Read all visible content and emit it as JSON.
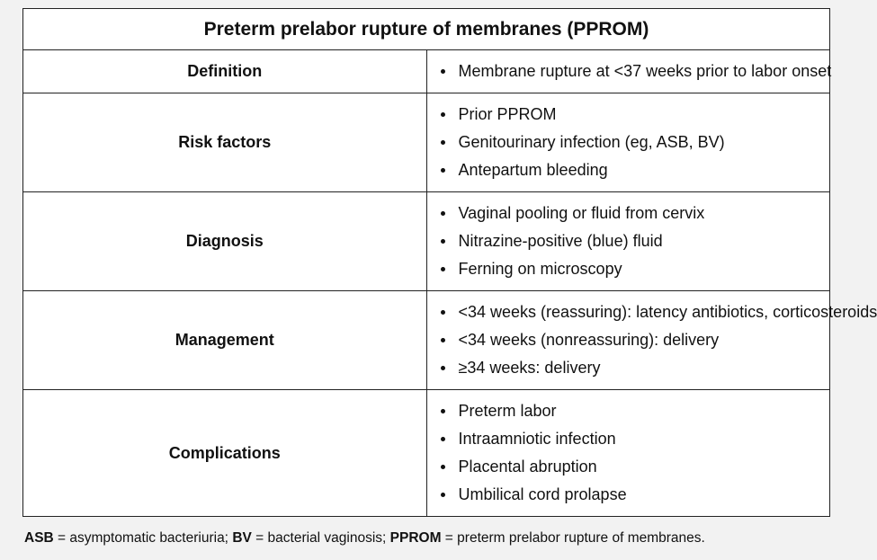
{
  "table": {
    "title": "Preterm prelabor rupture of membranes (PPROM)",
    "rows": [
      {
        "label": "Definition",
        "items": [
          "Membrane rupture at <37 weeks prior to labor onset"
        ]
      },
      {
        "label": "Risk factors",
        "items": [
          "Prior PPROM",
          "Genitourinary infection (eg, ASB, BV)",
          "Antepartum bleeding"
        ]
      },
      {
        "label": "Diagnosis",
        "items": [
          "Vaginal pooling or fluid from cervix",
          "Nitrazine-positive (blue) fluid",
          "Ferning on microscopy"
        ]
      },
      {
        "label": "Management",
        "items": [
          "<34 weeks (reassuring): latency antibiotics, corticosteroids",
          "<34 weeks (nonreassuring): delivery",
          "≥34 weeks: delivery"
        ]
      },
      {
        "label": "Complications",
        "items": [
          "Preterm labor",
          "Intraamniotic infection",
          "Placental abruption",
          "Umbilical cord prolapse"
        ]
      }
    ]
  },
  "footnote": {
    "abbr1": "ASB",
    "def1": " = asymptomatic bacteriuria;  ",
    "abbr2": "BV",
    "def2": " = bacterial vaginosis; ",
    "abbr3": "PPROM",
    "def3": " = preterm prelabor rupture of membranes."
  }
}
